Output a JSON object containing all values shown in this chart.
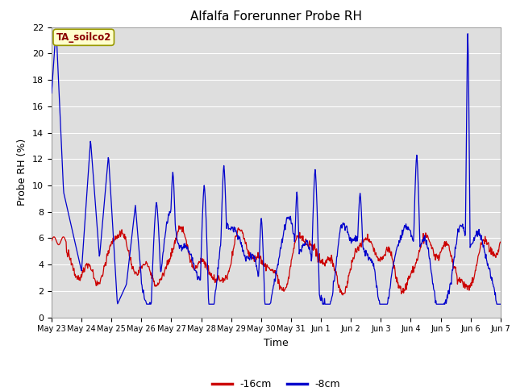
{
  "title": "Alfalfa Forerunner Probe RH",
  "xlabel": "Time",
  "ylabel": "Probe RH (%)",
  "ylim": [
    0,
    22
  ],
  "yticks": [
    0,
    2,
    4,
    6,
    8,
    10,
    12,
    14,
    16,
    18,
    20,
    22
  ],
  "annotation_text": "TA_soilco2",
  "annotation_color": "#8b0000",
  "annotation_bg": "#ffffcc",
  "annotation_edge": "#999900",
  "line_red_label": "-16cm",
  "line_blue_label": "-8cm",
  "line_red_color": "#cc0000",
  "line_blue_color": "#0000cc",
  "background_color": "#dedede",
  "grid_color": "#ffffff",
  "x_tick_labels": [
    "May 23",
    "May 24",
    "May 25",
    "May 26",
    "May 27",
    "May 28",
    "May 29",
    "May 30",
    "May 31",
    "Jun 1",
    "Jun 2",
    "Jun 3",
    "Jun 4",
    "Jun 5",
    "Jun 6",
    "Jun 7"
  ],
  "figsize": [
    6.4,
    4.8
  ],
  "dpi": 100
}
